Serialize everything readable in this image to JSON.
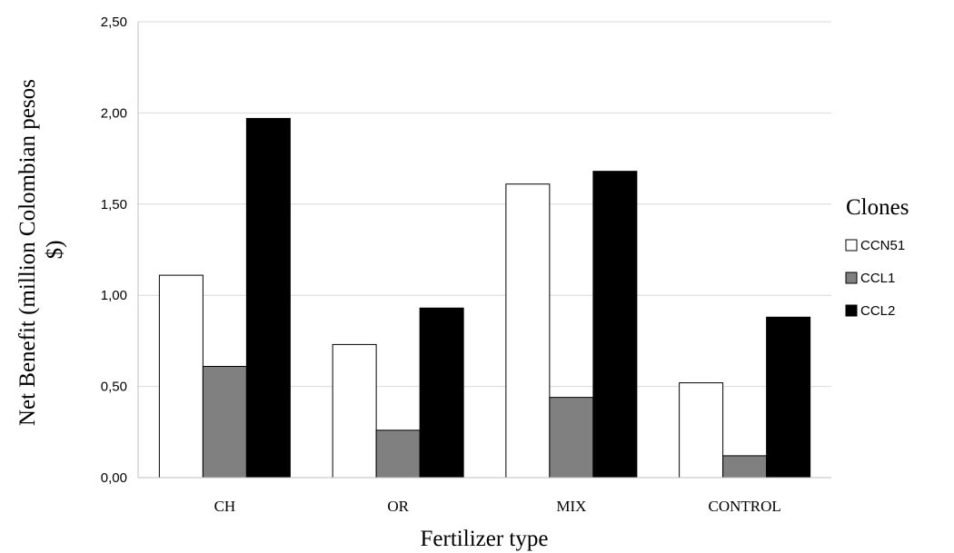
{
  "chart_data": {
    "type": "bar",
    "categories": [
      "CH",
      "OR",
      "MIX",
      "CONTROL"
    ],
    "series": [
      {
        "name": "CCN51",
        "values": [
          1.11,
          0.73,
          1.61,
          0.52
        ],
        "color": "#ffffff"
      },
      {
        "name": "CCL1",
        "values": [
          0.61,
          0.26,
          0.44,
          0.12
        ],
        "color": "#808080"
      },
      {
        "name": "CCL2",
        "values": [
          1.97,
          0.93,
          1.68,
          0.88
        ],
        "color": "#000000"
      }
    ],
    "xlabel": "Fertilizer type",
    "ylabel_lines": [
      "Net Benefit (million Colombian pesos",
      "$)"
    ],
    "ylim": [
      0,
      2.5
    ],
    "yticks": [
      "0,00",
      "0,50",
      "1,00",
      "1,50",
      "2,00",
      "2,50"
    ],
    "grid": true,
    "legend_title": "Clones",
    "legend_position": "right"
  }
}
